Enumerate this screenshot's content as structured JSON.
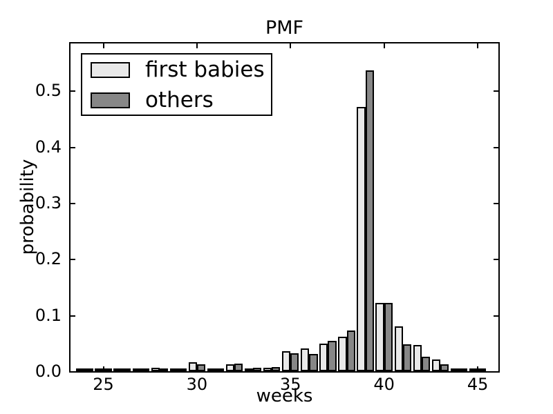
{
  "chart_data": {
    "type": "bar",
    "title": "PMF",
    "xlabel": "weeks",
    "ylabel": "probability",
    "categories": [
      24,
      25,
      26,
      27,
      28,
      29,
      30,
      31,
      32,
      33,
      34,
      35,
      36,
      37,
      38,
      39,
      40,
      41,
      42,
      43,
      44,
      45
    ],
    "series": [
      {
        "name": "first babies",
        "color": "#e9e9e9",
        "values": [
          0.002,
          0.0015,
          0.005,
          0.0015,
          0.0066,
          0.003,
          0.0164,
          0.0033,
          0.0123,
          0.0053,
          0.0057,
          0.036,
          0.0406,
          0.0488,
          0.062,
          0.4712,
          0.1212,
          0.0806,
          0.0464,
          0.0205,
          0.0041,
          0.0012
        ]
      },
      {
        "name": "others",
        "color": "#878787",
        "values": [
          0.002,
          0.0015,
          0.005,
          0.0015,
          0.0025,
          0.004,
          0.0123,
          0.005,
          0.0135,
          0.0065,
          0.0074,
          0.0318,
          0.0314,
          0.0542,
          0.0723,
          0.5368,
          0.1224,
          0.0477,
          0.0264,
          0.0128,
          0.005,
          0.0012
        ]
      }
    ],
    "bar_width": 0.45,
    "xlim": [
      23.17,
      46.18
    ],
    "ylim": [
      0,
      0.589
    ],
    "xticks": [
      25,
      30,
      35,
      40,
      45
    ],
    "yticks": [
      0.0,
      0.1,
      0.2,
      0.3,
      0.4,
      0.5
    ],
    "ytick_labels": [
      "0.0",
      "0.1",
      "0.2",
      "0.3",
      "0.4",
      "0.5"
    ],
    "legend_position": "upper left",
    "grid": false,
    "edge_color": "#000000",
    "background": "#ffffff"
  }
}
